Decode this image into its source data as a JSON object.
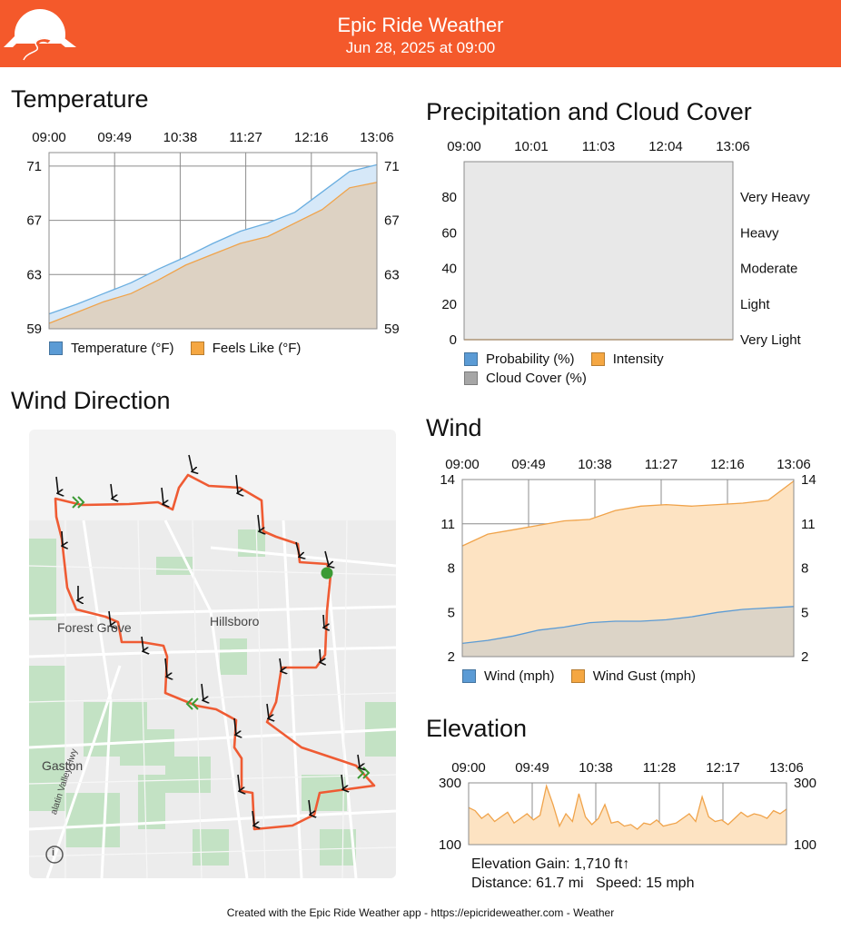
{
  "header": {
    "title": "Epic Ride Weather",
    "subtitle": "Jun 28, 2025 at 09:00",
    "brand_color": "#f4592b"
  },
  "temperature": {
    "title": "Temperature",
    "legend": [
      "Temperature (°F)",
      "Feels Like (°F)"
    ]
  },
  "precip": {
    "title": "Precipitation and Cloud Cover",
    "legend": [
      "Probability (%)",
      "Intensity",
      "Cloud Cover (%)"
    ]
  },
  "wind": {
    "title": "Wind",
    "legend": [
      "Wind (mph)",
      "Wind Gust (mph)"
    ]
  },
  "elevation": {
    "title": "Elevation",
    "gain": "Elevation Gain: 1,710 ft↑",
    "distance_speed": "Distance: 61.7 mi   Speed: 15 mph"
  },
  "wind_direction": {
    "title": "Wind Direction",
    "map_labels": [
      "Forest Grove",
      "Hillsboro",
      "Gaston",
      "alatin Valley Hwy"
    ]
  },
  "footer": "Created with the Epic Ride Weather app - https://epicrideweather.com -  Weather",
  "chart_data": [
    {
      "type": "area",
      "name": "temperature",
      "x_ticks": [
        "09:00",
        "09:49",
        "10:38",
        "11:27",
        "12:16",
        "13:06"
      ],
      "y_ticks": [
        59,
        63,
        67,
        71
      ],
      "ylim": [
        59,
        72
      ],
      "grid": true,
      "legend_position": "bottom-left",
      "series": [
        {
          "name": "Temperature (°F)",
          "color": "#6aaee0",
          "values": [
            60.1,
            60.8,
            61.6,
            62.4,
            63.4,
            64.3,
            65.3,
            66.2,
            66.8,
            67.6,
            69.1,
            70.6,
            71.1
          ]
        },
        {
          "name": "Feels Like (°F)",
          "color": "#f0a34a",
          "values": [
            59.4,
            60.2,
            61.0,
            61.6,
            62.6,
            63.7,
            64.5,
            65.3,
            65.8,
            66.8,
            67.8,
            69.4,
            69.8
          ]
        }
      ]
    },
    {
      "type": "area",
      "name": "precipitation",
      "x_ticks": [
        "09:00",
        "10:01",
        "11:03",
        "12:04",
        "13:06"
      ],
      "y_ticks": [
        0,
        20,
        40,
        60,
        80
      ],
      "ylim": [
        0,
        100
      ],
      "right_ticks": [
        "Very Light",
        "Light",
        "Moderate",
        "Heavy",
        "Very Heavy"
      ],
      "grid": true,
      "series": [
        {
          "name": "Probability (%)",
          "color": "#5b9bd5",
          "values": [
            0,
            0,
            0,
            0,
            0
          ]
        },
        {
          "name": "Intensity",
          "color": "#f0a34a",
          "values": [
            0,
            0,
            0,
            0,
            0
          ]
        },
        {
          "name": "Cloud Cover (%)",
          "color": "#a6a6a6",
          "values": [
            100,
            100,
            100,
            100,
            100
          ]
        }
      ]
    },
    {
      "type": "area",
      "name": "wind",
      "x_ticks": [
        "09:00",
        "09:49",
        "10:38",
        "11:27",
        "12:16",
        "13:06"
      ],
      "y_ticks": [
        2,
        5,
        8,
        11,
        14
      ],
      "ylim": [
        2,
        14
      ],
      "grid": true,
      "series": [
        {
          "name": "Wind Gust (mph)",
          "color": "#f0a34a",
          "values": [
            9.5,
            10.3,
            10.6,
            10.9,
            11.2,
            11.3,
            11.9,
            12.2,
            12.3,
            12.2,
            12.3,
            12.4,
            12.6,
            13.9
          ]
        },
        {
          "name": "Wind (mph)",
          "color": "#5b9bd5",
          "values": [
            2.9,
            3.1,
            3.4,
            3.8,
            4.0,
            4.3,
            4.4,
            4.4,
            4.5,
            4.7,
            5.0,
            5.2,
            5.3,
            5.4
          ]
        }
      ]
    },
    {
      "type": "area",
      "name": "elevation",
      "x_ticks": [
        "09:00",
        "09:49",
        "10:38",
        "11:28",
        "12:17",
        "13:06"
      ],
      "y_ticks": [
        100,
        300
      ],
      "ylim": [
        100,
        300
      ],
      "grid": true,
      "series": [
        {
          "name": "Elevation",
          "color": "#f0a34a",
          "values": [
            220,
            210,
            185,
            200,
            175,
            190,
            205,
            170,
            185,
            200,
            180,
            195,
            290,
            230,
            160,
            200,
            175,
            265,
            190,
            165,
            185,
            230,
            170,
            175,
            160,
            165,
            150,
            170,
            165,
            180,
            160,
            165,
            170,
            185,
            200,
            175,
            255,
            190,
            175,
            180,
            165,
            185,
            205,
            190,
            200,
            195,
            185,
            210,
            200,
            215
          ]
        }
      ]
    }
  ]
}
